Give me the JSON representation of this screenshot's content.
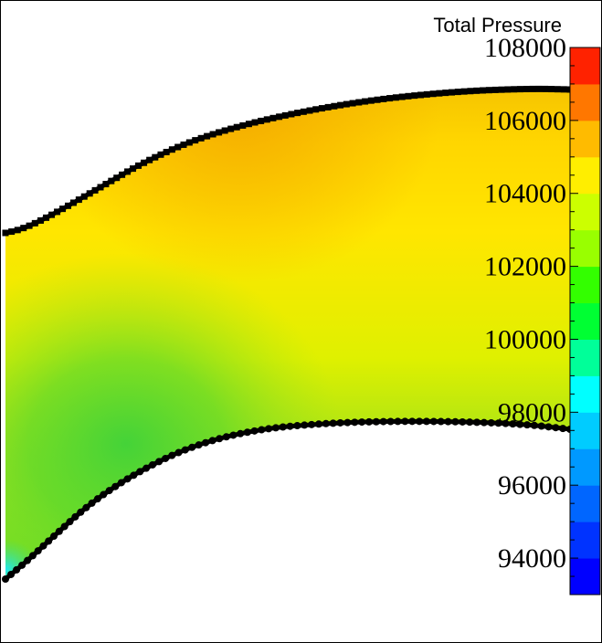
{
  "chart_data": {
    "type": "heatmap",
    "title": "",
    "variable": "Total Pressure",
    "xlabel": "",
    "ylabel": "",
    "colorbar": {
      "title": "Total Pressure",
      "range": [
        93000,
        108000
      ],
      "levels": 15,
      "ticks": [
        94000,
        96000,
        98000,
        100000,
        102000,
        104000,
        106000,
        108000
      ],
      "tick_labels": [
        "94000",
        "96000",
        "98000",
        "100000",
        "102000",
        "104000",
        "106000",
        "108000"
      ],
      "palette": [
        "#0000ff",
        "#0033ff",
        "#0066ff",
        "#0099ff",
        "#00ccff",
        "#00ffff",
        "#00ff99",
        "#00ff33",
        "#33ff00",
        "#99ff00",
        "#ccff00",
        "#ffee00",
        "#ffbb00",
        "#ff7700",
        "#ff2200"
      ]
    },
    "field_regions": {
      "upper_wall_band": 105000,
      "core_flow": 103800,
      "lower_left_region": 99500,
      "inlet_hub_corner": 95500,
      "upper_inlet_corner": 106500
    }
  }
}
